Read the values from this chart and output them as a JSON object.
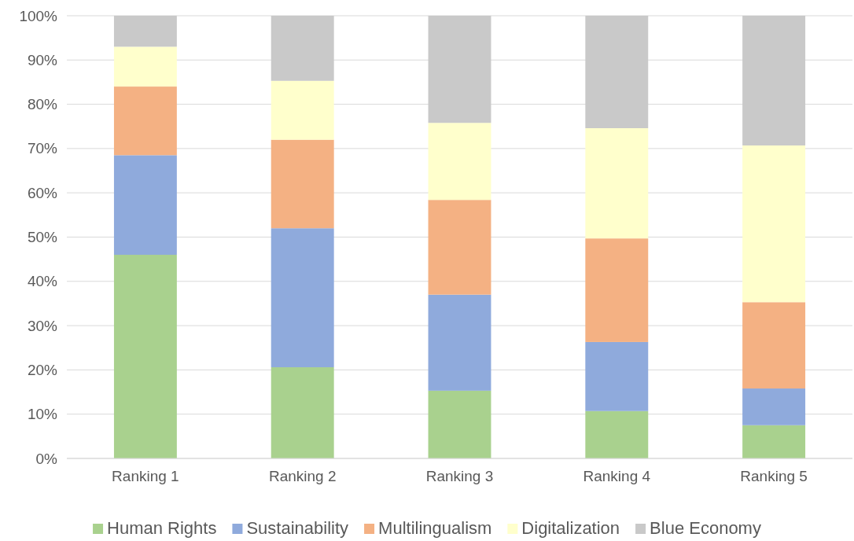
{
  "chart_data": {
    "type": "bar",
    "stacked": true,
    "categories": [
      "Ranking 1",
      "Ranking 2",
      "Ranking 3",
      "Ranking 4",
      "Ranking 5"
    ],
    "series": [
      {
        "name": "Human Rights",
        "color": "#a9d18e",
        "values": [
          46,
          20.6,
          15.3,
          10.7,
          7.5
        ]
      },
      {
        "name": "Sustainability",
        "color": "#8faadc",
        "values": [
          22.5,
          31.4,
          21.7,
          15.6,
          8.3
        ]
      },
      {
        "name": "Multilingualism",
        "color": "#f4b183",
        "values": [
          15.5,
          20,
          21.4,
          23.4,
          19.5
        ]
      },
      {
        "name": "Digitalization",
        "color": "#ffffcc",
        "values": [
          9,
          13.3,
          17.4,
          24.9,
          35.4
        ]
      },
      {
        "name": "Blue Economy",
        "color": "#c9c9c9",
        "values": [
          7,
          14.7,
          24.2,
          25.4,
          29.3
        ]
      }
    ],
    "ylim": [
      0,
      100
    ],
    "yticks": [
      {
        "value": 0,
        "label": "0%"
      },
      {
        "value": 10,
        "label": "10%"
      },
      {
        "value": 20,
        "label": "20%"
      },
      {
        "value": 30,
        "label": "30%"
      },
      {
        "value": 40,
        "label": "40%"
      },
      {
        "value": 50,
        "label": "50%"
      },
      {
        "value": 60,
        "label": "60%"
      },
      {
        "value": 70,
        "label": "70%"
      },
      {
        "value": 80,
        "label": "80%"
      },
      {
        "value": 90,
        "label": "90%"
      },
      {
        "value": 100,
        "label": "100%"
      }
    ],
    "grid": "y",
    "legend": "bottom"
  }
}
